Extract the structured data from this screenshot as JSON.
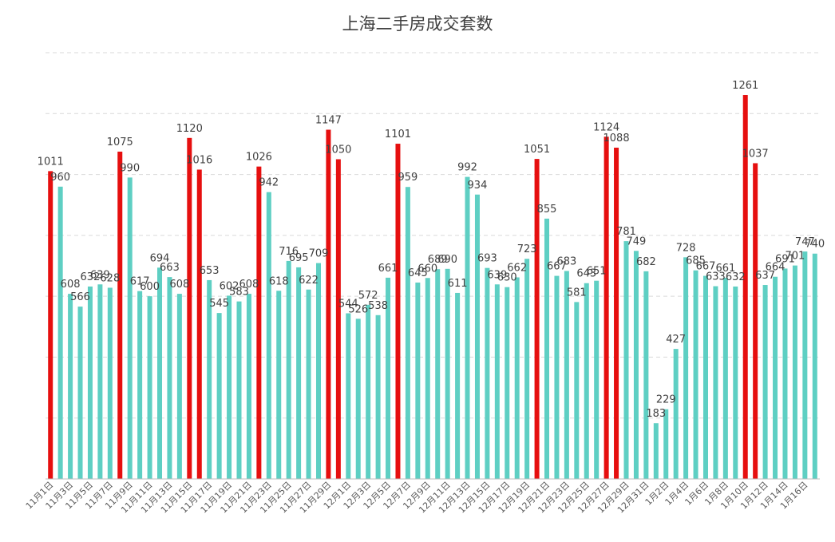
{
  "chart_data": {
    "type": "bar",
    "title": "上海二手房成交套数",
    "xlabel": "",
    "ylabel": "",
    "ylim": [
      0,
      1400
    ],
    "grid": true,
    "colors": {
      "normal": "#5ecfc3",
      "highlight": "#e60f0f"
    },
    "highlight_threshold": 1000,
    "categories": [
      "11月1日",
      "11月2日",
      "11月3日",
      "11月4日",
      "11月5日",
      "11月6日",
      "11月7日",
      "11月8日",
      "11月9日",
      "11月10日",
      "11月11日",
      "11月12日",
      "11月13日",
      "11月14日",
      "11月15日",
      "11月16日",
      "11月17日",
      "11月18日",
      "11月19日",
      "11月20日",
      "11月21日",
      "11月22日",
      "11月23日",
      "11月24日",
      "11月25日",
      "11月26日",
      "11月27日",
      "11月28日",
      "11月29日",
      "11月30日",
      "12月1日",
      "12月2日",
      "12月3日",
      "12月4日",
      "12月5日",
      "12月6日",
      "12月7日",
      "12月8日",
      "12月9日",
      "12月10日",
      "12月11日",
      "12月12日",
      "12月13日",
      "12月14日",
      "12月15日",
      "12月16日",
      "12月17日",
      "12月18日",
      "12月19日",
      "12月20日",
      "12月21日",
      "12月22日",
      "12月23日",
      "12月24日",
      "12月25日",
      "12月26日",
      "12月27日",
      "12月28日",
      "12月29日",
      "12月30日",
      "12月31日",
      "1月1日",
      "1月2日",
      "1月3日",
      "1月4日",
      "1月5日",
      "1月6日",
      "1月7日",
      "1月8日",
      "1月9日",
      "1月10日",
      "1月11日",
      "1月12日",
      "1月13日",
      "1月14日",
      "1月15日",
      "1月16日",
      "1月17日"
    ],
    "values": [
      1011,
      960,
      608,
      566,
      632,
      639,
      628,
      1075,
      990,
      617,
      600,
      694,
      663,
      608,
      1120,
      1016,
      653,
      545,
      602,
      583,
      608,
      1026,
      942,
      618,
      716,
      695,
      622,
      709,
      1147,
      1050,
      544,
      526,
      572,
      538,
      661,
      1101,
      959,
      645,
      660,
      689,
      690,
      611,
      992,
      934,
      693,
      639,
      630,
      662,
      723,
      1051,
      855,
      667,
      683,
      581,
      643,
      651,
      1124,
      1088,
      781,
      749,
      682,
      183,
      229,
      427,
      728,
      685,
      667,
      633,
      661,
      632,
      1261,
      1037,
      637,
      664,
      691,
      701,
      747,
      740
    ],
    "shown_tick_labels": [
      "11月1日",
      "11月3日",
      "11月5日",
      "11月7日",
      "11月9日",
      "11月11日",
      "11月13日",
      "11月15日",
      "11月17日",
      "11月19日",
      "11月21日",
      "11月23日",
      "11月25日",
      "11月27日",
      "11月29日",
      "12月1日",
      "12月3日",
      "12月5日",
      "12月7日",
      "12月9日",
      "12月11日",
      "12月13日",
      "12月15日",
      "12月17日",
      "12月19日",
      "12月21日",
      "12月23日",
      "12月25日",
      "12月27日",
      "12月29日",
      "12月31日",
      "1月2日",
      "1月4日",
      "1月6日",
      "1月8日",
      "1月10日",
      "1月12日",
      "1月14日",
      "1月16日"
    ]
  }
}
